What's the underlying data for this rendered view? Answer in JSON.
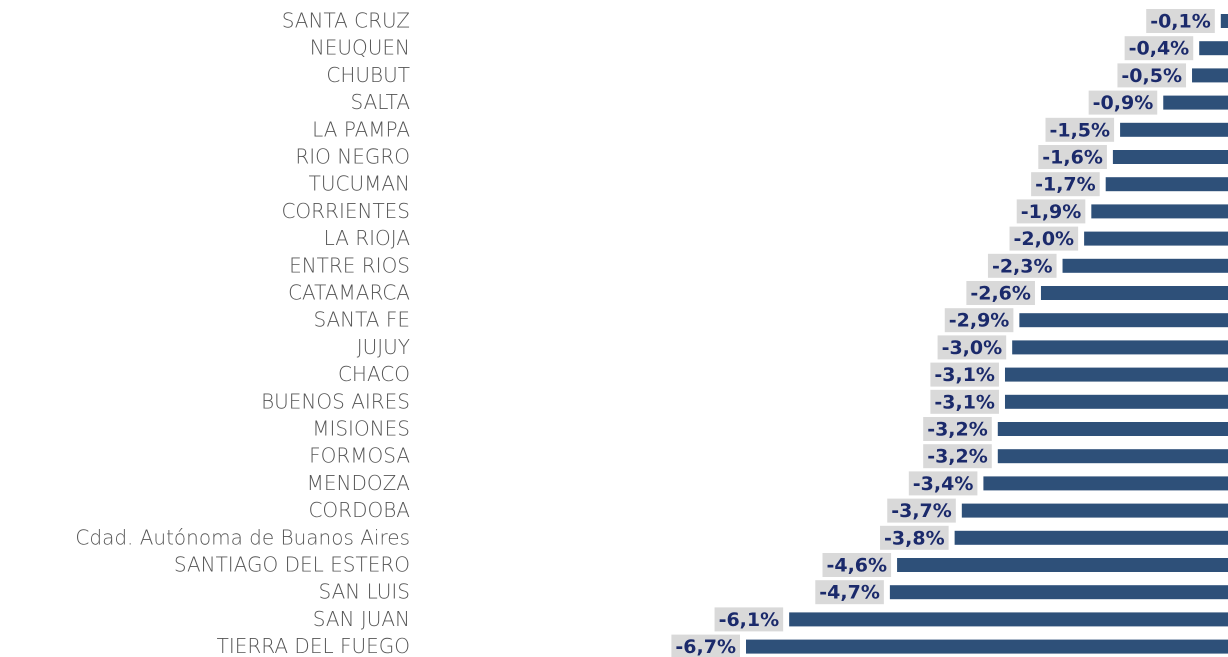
{
  "chart_data": {
    "type": "barh",
    "categories": [
      "SANTA CRUZ",
      "NEUQUEN",
      "CHUBUT",
      "SALTA",
      "LA PAMPA",
      "RIO NEGRO",
      "TUCUMAN",
      "CORRIENTES",
      "LA RIOJA",
      "ENTRE RIOS",
      "CATAMARCA",
      "SANTA FE",
      "JUJUY",
      "CHACO",
      "BUENOS AIRES",
      "MISIONES",
      "FORMOSA",
      "MENDOZA",
      "CORDOBA",
      "Cdad. Autónoma de Buanos Aires",
      "SANTIAGO DEL ESTERO",
      "SAN LUIS",
      "SAN JUAN",
      "TIERRA DEL FUEGO"
    ],
    "values": [
      -0.1,
      -0.4,
      -0.5,
      -0.9,
      -1.5,
      -1.6,
      -1.7,
      -1.9,
      -2.0,
      -2.3,
      -2.6,
      -2.9,
      -3.0,
      -3.1,
      -3.1,
      -3.2,
      -3.2,
      -3.4,
      -3.7,
      -3.8,
      -4.6,
      -4.7,
      -6.1,
      -6.7
    ],
    "value_labels": [
      "-0,1%",
      "-0,4%",
      "-0,5%",
      "-0,9%",
      "-1,5%",
      "-1,6%",
      "-1,7%",
      "-1,9%",
      "-2,0%",
      "-2,3%",
      "-2,6%",
      "-2,9%",
      "-3,0%",
      "-3,1%",
      "-3,1%",
      "-3,2%",
      "-3,2%",
      "-3,4%",
      "-3,7%",
      "-3,8%",
      "-4,6%",
      "-4,7%",
      "-6,1%",
      "-6,7%"
    ],
    "color": "#2e5079",
    "xlim": [
      -6.7,
      0
    ]
  }
}
